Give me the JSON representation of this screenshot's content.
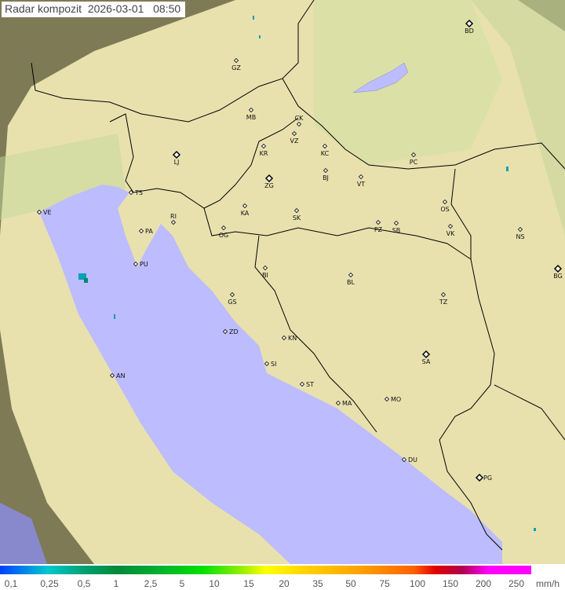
{
  "title": {
    "label": "Radar kompozit",
    "date": "2026-03-01",
    "time": "08:50"
  },
  "cities": [
    "GZ",
    "MB",
    "CK",
    "VZ",
    "KC",
    "KR",
    "PC",
    "LJ",
    "TS",
    "ZG",
    "BJ",
    "VT",
    "VE",
    "KA",
    "SK",
    "OS",
    "RI",
    "PA",
    "OG",
    "PZ",
    "SB",
    "VK",
    "NS",
    "PU",
    "BI",
    "BL",
    "BG",
    "GS",
    "TZ",
    "ZD",
    "KN",
    "SA",
    "SI",
    "AN",
    "ST",
    "MO",
    "MA",
    "DU",
    "PG",
    "BD"
  ],
  "legend": {
    "ticks": [
      "0,1",
      "0,25",
      "0,5",
      "1",
      "2,5",
      "5",
      "10",
      "15",
      "20",
      "35",
      "50",
      "75",
      "100",
      "150",
      "200",
      "250"
    ],
    "unit": "mm/h"
  },
  "colors": {
    "sea": "#bcbcff",
    "land": "#e6dfa8",
    "outside": "#8a8660",
    "coverage_edge": "#f3efd0"
  }
}
